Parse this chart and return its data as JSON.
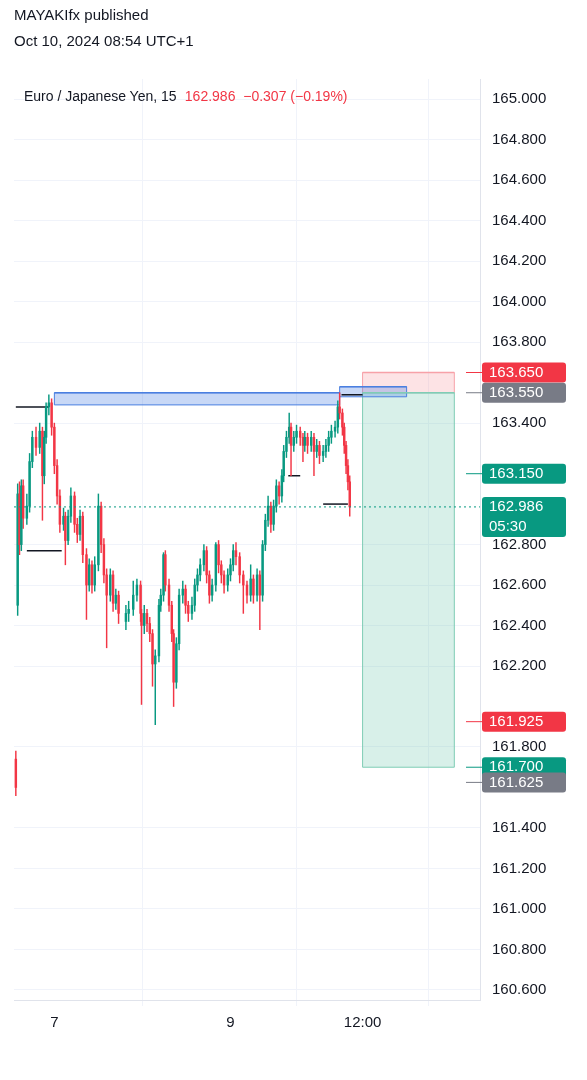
{
  "chart_data": {
    "type": "candlestick",
    "title": "MAYAKIfx published",
    "subtitle": "Oct 10, 2024 08:54 UTC+1",
    "annotations": [
      "Euro / Japanese Yen, 15",
      "162.986  −0.307 (−0.19%)"
    ],
    "xlim": [
      "2024-10-06T13:00",
      "2024-10-11T20:00"
    ],
    "xticks": [
      {
        "value": "2024-10-07",
        "label": "7"
      },
      {
        "value": "2024-10-09",
        "label": "9"
      },
      {
        "value": "2024-10-10T12:00",
        "label": "12:00"
      }
    ],
    "ylim": [
      160.55,
      165.1
    ],
    "yticks": [
      {
        "value": 160.6,
        "label": "160.600"
      },
      {
        "value": 160.8,
        "label": "160.800"
      },
      {
        "value": 161,
        "label": "161.000"
      },
      {
        "value": 161.2,
        "label": "161.200"
      },
      {
        "value": 161.4,
        "label": "161.400"
      },
      {
        "value": 161.8,
        "label": "161.800"
      },
      {
        "value": 162.2,
        "label": "162.200"
      },
      {
        "value": 162.4,
        "label": "162.400"
      },
      {
        "value": 162.6,
        "label": "162.600"
      },
      {
        "value": 162.8,
        "label": "162.800"
      },
      {
        "value": 163.4,
        "label": "163.400"
      },
      {
        "value": 163.8,
        "label": "163.800"
      },
      {
        "value": 164,
        "label": "164.000"
      },
      {
        "value": 164.2,
        "label": "164.200"
      },
      {
        "value": 164.4,
        "label": "164.400"
      },
      {
        "value": 164.6,
        "label": "164.600"
      },
      {
        "value": 164.8,
        "label": "164.800"
      },
      {
        "value": 165,
        "label": "165.000"
      }
    ],
    "grid": true,
    "ref_lines": [
      {
        "axis": "y",
        "value": 163.65,
        "label": "163.650",
        "color": "#f23645"
      },
      {
        "axis": "y",
        "value": 163.55,
        "label": "163.550",
        "color": "#787b86"
      },
      {
        "axis": "y",
        "value": 163.15,
        "label": "163.150",
        "color": "#089981"
      },
      {
        "axis": "y",
        "value": 162.986,
        "label": "162.986\n05:30",
        "color": "#089981",
        "line_style": "dotted"
      },
      {
        "axis": "y",
        "value": 161.925,
        "label": "161.925",
        "color": "#f23645"
      },
      {
        "axis": "y",
        "value": 161.7,
        "label": "161.700",
        "color": "#089981"
      },
      {
        "axis": "y",
        "value": 161.625,
        "label": "161.625",
        "color": "#787b86"
      }
    ],
    "series": [
      {
        "type": "line",
        "x": [
          "2024-10-10T12:00",
          "2024-10-11T13:00"
        ],
        "values": [
          163.65,
          163.65
        ],
        "lower": [
          163.55,
          163.55
        ],
        "upper": [
          163.65,
          163.65
        ],
        "color": "#f7a1a8"
      },
      {
        "type": "line",
        "x": [
          "2024-10-10T12:00",
          "2024-10-11T13:00"
        ],
        "values": [
          163.55,
          163.55
        ],
        "lower": [
          161.7,
          161.7
        ],
        "upper": [
          163.55,
          163.55
        ],
        "color": "#7fcdb5"
      },
      {
        "type": "line",
        "x": [
          "2024-10-07T00:00",
          "2024-10-10T05:45"
        ],
        "values": [
          163.55,
          163.55
        ],
        "lower": [
          163.49,
          163.49
        ],
        "upper": [
          163.55,
          163.55
        ],
        "color": "#4a7fe0"
      },
      {
        "type": "line",
        "x": [
          "2024-10-10T05:45",
          "2024-10-11T00:00"
        ],
        "values": [
          163.58,
          163.58
        ],
        "lower": [
          163.53,
          163.53
        ],
        "upper": [
          163.58,
          163.58
        ],
        "color": "#4a7fe0"
      },
      {
        "type": "line",
        "x": [
          "2024-10-06T13:30",
          "2024-10-06T22:30"
        ],
        "values": [
          163.48,
          163.48
        ],
        "color": "#131722"
      },
      {
        "type": "line",
        "x": [
          "2024-10-06T16:30",
          "2024-10-07T02:00"
        ],
        "values": [
          162.77,
          162.77
        ],
        "color": "#131722"
      },
      {
        "type": "line",
        "x": [
          "2024-10-09T15:45",
          "2024-10-09T19:00"
        ],
        "values": [
          163.14,
          163.14
        ],
        "color": "#131722"
      },
      {
        "type": "line",
        "x": [
          "2024-10-10T01:15",
          "2024-10-10T08:00"
        ],
        "values": [
          163.0,
          163.0
        ],
        "color": "#131722"
      },
      {
        "type": "line",
        "x": [
          "2024-10-10T06:15",
          "2024-10-10T12:00"
        ],
        "values": [
          163.54,
          163.54
        ],
        "color": "#131722"
      },
      {
        "x": [
          "2024-10-06T13:30",
          "2024-10-06T14:00",
          "2024-10-06T14:30",
          "2024-10-06T15:00",
          "2024-10-06T15:30",
          "2024-10-06T16:30",
          "2024-10-06T17:15",
          "2024-10-06T18:00",
          "2024-10-06T19:00",
          "2024-10-06T20:00",
          "2024-10-06T20:45",
          "2024-10-06T21:15",
          "2024-10-06T21:45",
          "2024-10-06T22:30",
          "2024-10-06T23:15",
          "2024-10-07T00:00",
          "2024-10-07T00:45",
          "2024-10-07T01:30",
          "2024-10-07T02:30",
          "2024-10-07T03:00",
          "2024-10-07T03:45",
          "2024-10-07T04:30",
          "2024-10-07T05:30",
          "2024-10-07T06:15",
          "2024-10-07T07:00",
          "2024-10-07T07:45",
          "2024-10-07T08:45",
          "2024-10-07T09:30",
          "2024-10-07T10:15",
          "2024-10-07T11:00",
          "2024-10-07T12:00",
          "2024-10-07T12:45",
          "2024-10-07T13:30",
          "2024-10-07T14:15",
          "2024-10-07T15:15",
          "2024-10-07T16:00",
          "2024-10-07T16:45",
          "2024-10-07T17:30",
          "2024-10-07T19:30",
          "2024-10-07T20:15",
          "2024-10-07T21:30",
          "2024-10-07T22:30",
          "2024-10-07T23:30",
          "2024-10-07T23:45",
          "2024-10-08T00:30",
          "2024-10-08T01:15",
          "2024-10-08T02:00",
          "2024-10-08T02:45",
          "2024-10-08T03:30",
          "2024-10-08T04:30",
          "2024-10-08T05:00",
          "2024-10-08T05:45",
          "2024-10-08T06:15",
          "2024-10-08T07:15",
          "2024-10-08T08:00",
          "2024-10-08T08:30",
          "2024-10-08T09:15",
          "2024-10-08T10:00",
          "2024-10-08T11:00",
          "2024-10-08T11:45",
          "2024-10-08T12:30",
          "2024-10-08T13:30",
          "2024-10-08T14:15",
          "2024-10-08T15:00",
          "2024-10-08T15:45",
          "2024-10-08T16:45",
          "2024-10-08T17:30",
          "2024-10-08T18:15",
          "2024-10-08T19:00",
          "2024-10-08T20:00",
          "2024-10-08T20:45",
          "2024-10-08T21:30",
          "2024-10-08T22:15",
          "2024-10-08T23:15",
          "2024-10-09T00:00",
          "2024-10-09T00:45",
          "2024-10-09T01:30",
          "2024-10-09T02:30",
          "2024-10-09T03:30",
          "2024-10-09T04:30",
          "2024-10-09T05:30",
          "2024-10-09T06:15",
          "2024-10-09T07:15",
          "2024-10-09T08:00",
          "2024-10-09T08:45",
          "2024-10-09T09:30",
          "2024-10-09T10:15",
          "2024-10-09T11:00",
          "2024-10-09T11:45",
          "2024-10-09T12:30",
          "2024-10-09T13:15",
          "2024-10-09T14:00",
          "2024-10-09T14:30",
          "2024-10-09T15:15",
          "2024-10-09T16:00",
          "2024-10-09T16:30",
          "2024-10-09T17:15",
          "2024-10-09T18:00",
          "2024-10-09T19:00",
          "2024-10-09T19:45",
          "2024-10-09T20:15",
          "2024-10-09T21:00",
          "2024-10-09T22:00",
          "2024-10-09T22:45",
          "2024-10-09T23:30",
          "2024-10-10T00:15",
          "2024-10-10T01:15",
          "2024-10-10T02:00",
          "2024-10-10T02:45",
          "2024-10-10T03:30",
          "2024-10-10T04:30",
          "2024-10-10T05:15",
          "2024-10-10T05:45",
          "2024-10-10T06:30",
          "2024-10-10T07:00",
          "2024-10-10T07:30",
          "2024-10-10T08:00",
          "2024-10-10T08:30"
        ],
        "ohlc": [
          [
            161.74,
            161.78,
            161.56,
            161.6
          ],
          [
            162.5,
            163.1,
            162.45,
            163.05
          ],
          [
            163.05,
            163.11,
            162.75,
            162.8
          ],
          [
            162.8,
            163.12,
            162.77,
            163.09
          ],
          [
            163.09,
            163.12,
            162.88,
            162.93
          ],
          [
            162.93,
            163.05,
            162.9,
            162.99
          ],
          [
            162.99,
            163.25,
            162.96,
            163.21
          ],
          [
            163.21,
            163.36,
            163.18,
            163.33
          ],
          [
            163.33,
            163.38,
            163.24,
            163.28
          ],
          [
            163.28,
            163.4,
            163.25,
            163.36
          ],
          [
            163.36,
            163.38,
            162.92,
            163.14
          ],
          [
            163.14,
            163.36,
            163.1,
            163.33
          ],
          [
            163.33,
            163.5,
            163.3,
            163.48
          ],
          [
            163.48,
            163.54,
            163.44,
            163.5
          ],
          [
            163.5,
            163.52,
            163.34,
            163.38
          ],
          [
            163.38,
            163.4,
            163.15,
            163.19
          ],
          [
            163.19,
            163.22,
            163.0,
            163.04
          ],
          [
            163.04,
            163.07,
            162.86,
            162.9
          ],
          [
            162.9,
            162.98,
            162.87,
            162.94
          ],
          [
            162.94,
            162.96,
            162.7,
            162.82
          ],
          [
            162.82,
            162.97,
            162.8,
            162.94
          ],
          [
            162.94,
            163.08,
            162.91,
            163.04
          ],
          [
            163.04,
            163.06,
            162.86,
            162.9
          ],
          [
            162.9,
            162.93,
            162.81,
            162.85
          ],
          [
            162.85,
            162.97,
            162.82,
            162.94
          ],
          [
            162.94,
            162.96,
            162.71,
            162.75
          ],
          [
            162.75,
            162.78,
            162.43,
            162.6
          ],
          [
            162.6,
            162.73,
            162.57,
            162.7
          ],
          [
            162.7,
            162.72,
            162.56,
            162.6
          ],
          [
            162.6,
            162.74,
            162.57,
            162.7
          ],
          [
            162.7,
            163.05,
            162.67,
            162.99
          ],
          [
            162.99,
            163.01,
            162.76,
            162.8
          ],
          [
            162.8,
            162.83,
            162.61,
            162.65
          ],
          [
            162.65,
            162.68,
            162.29,
            162.55
          ],
          [
            162.55,
            162.68,
            162.52,
            162.65
          ],
          [
            162.65,
            162.67,
            162.47,
            162.51
          ],
          [
            162.51,
            162.58,
            162.48,
            162.55
          ],
          [
            162.55,
            162.57,
            162.41,
            162.46
          ],
          [
            162.42,
            162.5,
            162.38,
            162.46
          ],
          [
            162.46,
            162.52,
            162.42,
            162.48
          ],
          [
            162.48,
            162.62,
            162.45,
            162.55
          ],
          [
            162.55,
            162.63,
            162.52,
            162.6
          ],
          [
            162.6,
            162.62,
            162.42,
            162.46
          ],
          [
            162.46,
            162.48,
            162.01,
            162.4
          ],
          [
            162.4,
            162.5,
            162.36,
            162.46
          ],
          [
            162.46,
            162.48,
            162.37,
            162.41
          ],
          [
            162.41,
            162.44,
            162.32,
            162.36
          ],
          [
            162.36,
            162.38,
            162.1,
            162.21
          ],
          [
            162.21,
            162.28,
            161.91,
            162.25
          ],
          [
            162.25,
            162.53,
            162.22,
            162.5
          ],
          [
            162.5,
            162.58,
            162.47,
            162.55
          ],
          [
            162.55,
            162.76,
            162.52,
            162.75
          ],
          [
            162.75,
            162.77,
            162.57,
            162.6
          ],
          [
            162.6,
            162.63,
            162.47,
            162.5
          ],
          [
            162.5,
            162.52,
            162.32,
            162.36
          ],
          [
            162.36,
            162.38,
            162.0,
            162.12
          ],
          [
            162.12,
            162.34,
            162.09,
            162.31
          ],
          [
            162.31,
            162.58,
            162.28,
            162.55
          ],
          [
            162.55,
            162.62,
            162.51,
            162.58
          ],
          [
            162.58,
            162.6,
            162.46,
            162.5
          ],
          [
            162.5,
            162.52,
            162.42,
            162.46
          ],
          [
            162.46,
            162.54,
            162.43,
            162.5
          ],
          [
            162.5,
            162.63,
            162.47,
            162.6
          ],
          [
            162.6,
            162.68,
            162.57,
            162.65
          ],
          [
            162.65,
            162.73,
            162.62,
            162.7
          ],
          [
            162.7,
            162.8,
            162.67,
            162.77
          ],
          [
            162.77,
            162.79,
            162.61,
            162.65
          ],
          [
            162.65,
            162.67,
            162.51,
            162.55
          ],
          [
            162.55,
            162.63,
            162.52,
            162.6
          ],
          [
            162.6,
            162.81,
            162.57,
            162.8
          ],
          [
            162.8,
            162.82,
            162.66,
            162.7
          ],
          [
            162.7,
            162.72,
            162.61,
            162.65
          ],
          [
            162.65,
            162.67,
            162.56,
            162.6
          ],
          [
            162.6,
            162.68,
            162.57,
            162.65
          ],
          [
            162.65,
            162.73,
            162.62,
            162.7
          ],
          [
            162.7,
            162.8,
            162.67,
            162.77
          ],
          [
            162.77,
            162.81,
            162.7,
            162.74
          ],
          [
            162.74,
            162.76,
            162.61,
            162.65
          ],
          [
            162.65,
            162.67,
            162.46,
            162.6
          ],
          [
            162.6,
            162.62,
            162.51,
            162.55
          ],
          [
            162.55,
            162.7,
            162.52,
            162.63
          ],
          [
            162.63,
            162.65,
            162.51,
            162.55
          ],
          [
            162.55,
            162.68,
            162.52,
            162.65
          ],
          [
            162.65,
            162.67,
            162.38,
            162.55
          ],
          [
            162.55,
            162.82,
            162.52,
            162.8
          ],
          [
            162.8,
            162.95,
            162.77,
            162.92
          ],
          [
            162.92,
            163.04,
            162.89,
            162.99
          ],
          [
            162.99,
            163.01,
            162.86,
            162.9
          ],
          [
            162.9,
            163.02,
            162.87,
            162.99
          ],
          [
            162.99,
            163.12,
            162.96,
            163.09
          ],
          [
            163.09,
            163.11,
            163.0,
            163.04
          ],
          [
            163.04,
            163.17,
            163.01,
            163.14
          ],
          [
            163.14,
            163.29,
            163.11,
            163.26
          ],
          [
            163.26,
            163.36,
            163.23,
            163.33
          ],
          [
            163.33,
            163.45,
            163.3,
            163.38
          ],
          [
            163.38,
            163.4,
            163.14,
            163.29
          ],
          [
            163.29,
            163.36,
            163.26,
            163.33
          ],
          [
            163.33,
            163.39,
            163.3,
            163.36
          ],
          [
            163.36,
            163.38,
            163.29,
            163.33
          ],
          [
            163.33,
            163.35,
            163.21,
            163.29
          ],
          [
            163.29,
            163.36,
            163.26,
            163.33
          ],
          [
            163.33,
            163.35,
            163.25,
            163.29
          ],
          [
            163.29,
            163.36,
            163.26,
            163.33
          ],
          [
            163.33,
            163.35,
            163.14,
            163.26
          ],
          [
            163.26,
            163.32,
            163.23,
            163.29
          ],
          [
            163.29,
            163.31,
            163.2,
            163.24
          ],
          [
            163.24,
            163.29,
            163.21,
            163.26
          ],
          [
            163.26,
            163.32,
            163.23,
            163.29
          ],
          [
            163.29,
            163.36,
            163.26,
            163.33
          ],
          [
            163.33,
            163.39,
            163.3,
            163.36
          ],
          [
            163.36,
            163.41,
            163.33,
            163.38
          ],
          [
            163.38,
            163.51,
            163.35,
            163.48
          ],
          [
            163.48,
            163.55,
            163.42,
            163.45
          ],
          [
            163.45,
            163.47,
            163.34,
            163.38
          ],
          [
            163.38,
            163.4,
            163.25,
            163.29
          ],
          [
            163.29,
            163.31,
            163.15,
            163.19
          ],
          [
            163.19,
            163.22,
            163.07,
            163.11
          ],
          [
            163.11,
            163.14,
            162.94,
            162.986
          ]
        ],
        "colors": [
          "#f23645",
          "#089981",
          "#f23645",
          "#089981",
          "#f23645",
          "#089981",
          "#089981",
          "#089981",
          "#f23645",
          "#089981",
          "#f23645",
          "#089981",
          "#089981",
          "#089981",
          "#f23645",
          "#f23645",
          "#f23645",
          "#f23645",
          "#089981",
          "#f23645",
          "#089981",
          "#089981",
          "#f23645",
          "#f23645",
          "#089981",
          "#f23645",
          "#f23645",
          "#089981",
          "#f23645",
          "#089981",
          "#089981",
          "#f23645",
          "#f23645",
          "#f23645",
          "#089981",
          "#f23645",
          "#089981",
          "#f23645",
          "#089981",
          "#089981",
          "#089981",
          "#089981",
          "#f23645",
          "#f23645",
          "#089981",
          "#f23645",
          "#f23645",
          "#f23645",
          "#089981",
          "#089981",
          "#089981",
          "#089981",
          "#f23645",
          "#f23645",
          "#f23645",
          "#f23645",
          "#089981",
          "#089981",
          "#089981",
          "#f23645",
          "#f23645",
          "#089981",
          "#089981",
          "#089981",
          "#089981",
          "#089981",
          "#f23645",
          "#f23645",
          "#089981",
          "#089981",
          "#f23645",
          "#f23645",
          "#f23645",
          "#089981",
          "#089981",
          "#089981",
          "#f23645",
          "#f23645",
          "#f23645",
          "#f23645",
          "#089981",
          "#f23645",
          "#089981",
          "#f23645",
          "#089981",
          "#089981",
          "#089981",
          "#f23645",
          "#089981",
          "#089981",
          "#f23645",
          "#089981",
          "#089981",
          "#089981",
          "#089981",
          "#f23645",
          "#089981",
          "#089981",
          "#f23645",
          "#f23645",
          "#089981",
          "#f23645",
          "#089981",
          "#f23645",
          "#089981",
          "#f23645",
          "#089981",
          "#089981",
          "#089981",
          "#089981",
          "#089981",
          "#089981",
          "#f23645",
          "#f23645",
          "#f23645",
          "#f23645",
          "#f23645",
          "#f23645"
        ]
      }
    ]
  }
}
